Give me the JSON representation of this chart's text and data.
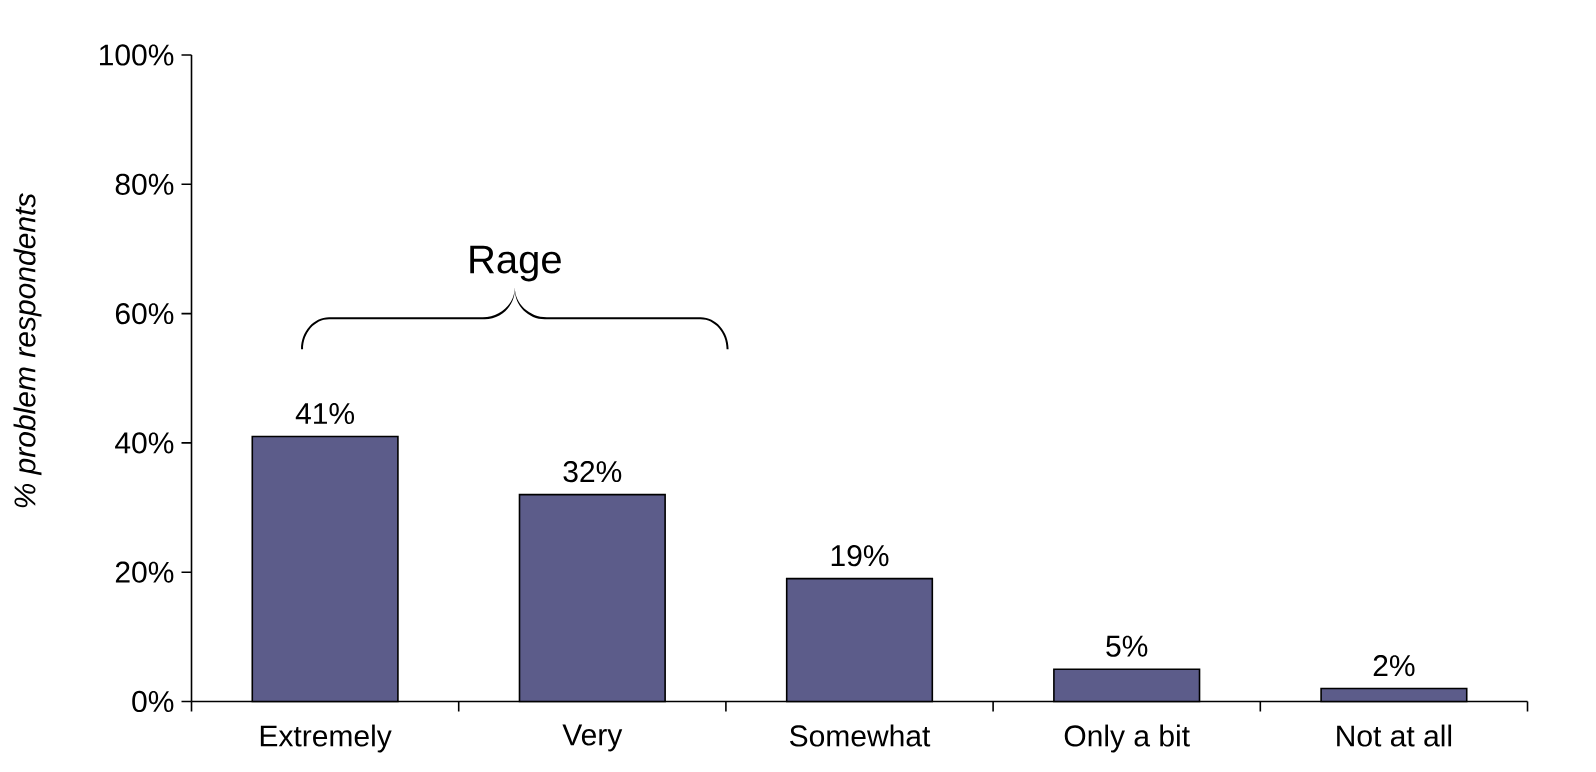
{
  "chart_data": {
    "type": "bar",
    "ylabel": "% problem respondents",
    "categories": [
      "Extremely",
      "Very",
      "Somewhat",
      "Only a bit",
      "Not at all"
    ],
    "values": [
      41,
      32,
      19,
      5,
      2
    ],
    "color": "#5c5c8a",
    "value_labels": [
      "41%",
      "32%",
      "19%",
      "5%",
      "2%"
    ],
    "ylim": [
      0,
      100
    ],
    "yticks": [
      {
        "value": 0,
        "label": "0%"
      },
      {
        "value": 20,
        "label": "20%"
      },
      {
        "value": 40,
        "label": "40%"
      },
      {
        "value": 60,
        "label": "60%"
      },
      {
        "value": 80,
        "label": "80%"
      },
      {
        "value": 100,
        "label": "100%"
      }
    ],
    "annotations": [
      "Rage"
    ]
  }
}
